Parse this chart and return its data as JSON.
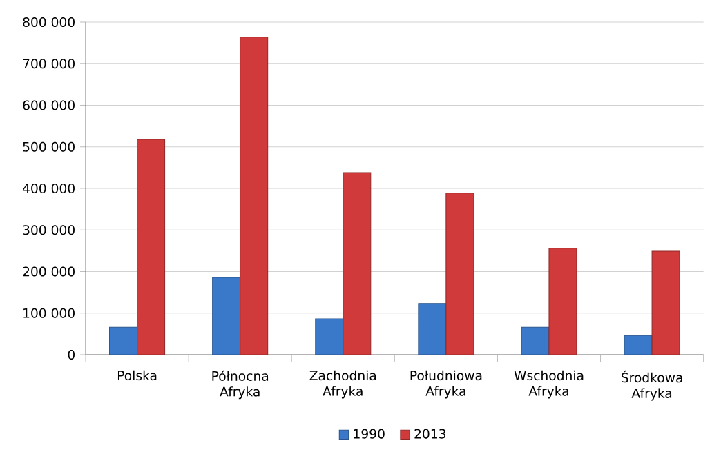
{
  "chart_data": {
    "type": "bar",
    "categories": [
      "Polska",
      "Północna Afryka",
      "Zachodnia Afryka",
      "Południowa Afryka",
      "Wschodnia Afryka",
      "Środkowa Afryka"
    ],
    "series": [
      {
        "name": "1990",
        "color": "#3a78c9",
        "values": [
          66000,
          186000,
          86000,
          123000,
          66000,
          46000
        ]
      },
      {
        "name": "2013",
        "color": "#d03a3a",
        "values": [
          518000,
          764000,
          438000,
          389000,
          256000,
          249000
        ]
      }
    ],
    "ylim": [
      0,
      800000
    ],
    "yticks": [
      {
        "value": 0,
        "label": "0"
      },
      {
        "value": 100000,
        "label": "100 000"
      },
      {
        "value": 200000,
        "label": "200 000"
      },
      {
        "value": 300000,
        "label": "300 000"
      },
      {
        "value": 400000,
        "label": "400 000"
      },
      {
        "value": 500000,
        "label": "500 000"
      },
      {
        "value": 600000,
        "label": "600 000"
      },
      {
        "value": 700000,
        "label": "700 000"
      },
      {
        "value": 800000,
        "label": "800 000"
      }
    ],
    "grid": "y",
    "legend": "bottom"
  }
}
